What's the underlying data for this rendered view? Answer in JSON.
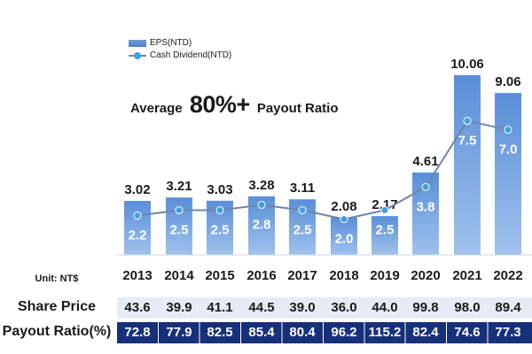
{
  "legend": {
    "eps": "EPS(NTD)",
    "dividend": "Cash Dividend(NTD)"
  },
  "callout": {
    "prefix": "Average",
    "highlight": "80%+",
    "suffix": "Payout Ratio"
  },
  "table": {
    "unit": "Unit: NT$",
    "share_price_label": "Share Price",
    "payout_label": "Payout Ratio(%)"
  },
  "colors": {
    "bar": "#5b8fd6",
    "line": "#6d86a6",
    "marker": "#3fa0e0",
    "payout_bg": "#16307a",
    "share_bg": "#e6ebf4"
  },
  "chart_data": {
    "type": "bar",
    "categories": [
      "2013",
      "2014",
      "2015",
      "2016",
      "2017",
      "2018",
      "2019",
      "2020",
      "2021",
      "2022"
    ],
    "series": [
      {
        "name": "EPS(NTD)",
        "type": "bar",
        "values": [
          3.02,
          3.21,
          3.03,
          3.28,
          3.11,
          2.08,
          2.17,
          4.61,
          10.06,
          9.06
        ],
        "labels": [
          "3.02",
          "3.21",
          "3.03",
          "3.28",
          "3.11",
          "2.08",
          "2.17",
          "4.61",
          "10.06",
          "9.06"
        ]
      },
      {
        "name": "Cash Dividend(NTD)",
        "type": "line",
        "values": [
          2.2,
          2.5,
          2.5,
          2.8,
          2.5,
          2.0,
          2.5,
          3.8,
          7.5,
          7.0
        ],
        "labels": [
          "2.2",
          "2.5",
          "2.5",
          "2.8",
          "2.5",
          "2.0",
          "2.5",
          "3.8",
          "7.5",
          "7.0"
        ]
      }
    ],
    "table_rows": [
      {
        "name": "Share Price",
        "values": [
          "43.6",
          "39.9",
          "41.1",
          "44.5",
          "39.0",
          "36.0",
          "44.0",
          "99.8",
          "98.0",
          "89.4"
        ]
      },
      {
        "name": "Payout Ratio(%)",
        "values": [
          "72.8",
          "77.9",
          "82.5",
          "85.4",
          "80.4",
          "96.2",
          "115.2",
          "82.4",
          "74.6",
          "77.3"
        ]
      }
    ],
    "ylim": [
      0,
      10.5
    ],
    "grid": false,
    "legend_position": "top-left"
  }
}
